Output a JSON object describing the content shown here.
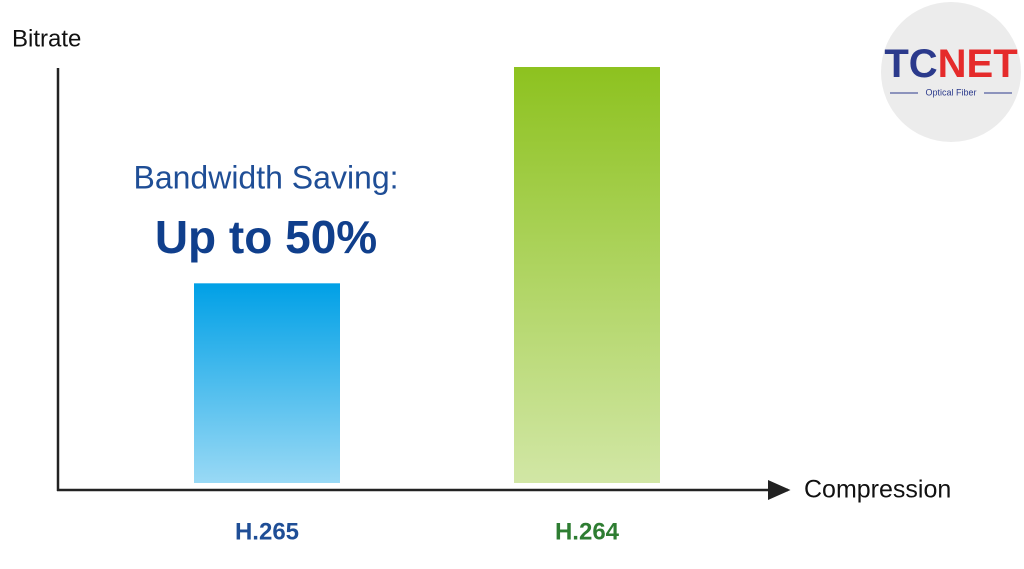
{
  "chart_data": {
    "type": "bar",
    "y_label": "Bitrate",
    "x_label": "Compression",
    "annotation": [
      "Bandwidth Saving:",
      "Up to 50%"
    ],
    "categories": [
      "H.265",
      "H.264"
    ],
    "values": [
      48,
      100
    ],
    "colors": [
      "#00a0e6",
      "#8dc21f"
    ],
    "label_colors": [
      "#1f4e96",
      "#2e7d32"
    ],
    "ylim": [
      0,
      100
    ]
  },
  "logo": {
    "part_1": "TC",
    "part_2": "NET",
    "subtitle": "Optical Fiber"
  }
}
